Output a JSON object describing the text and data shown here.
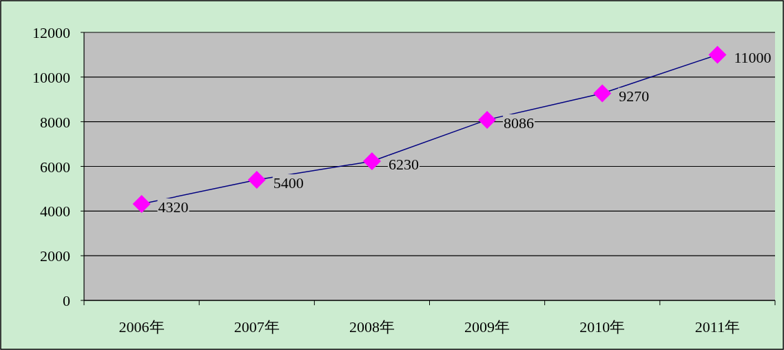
{
  "chart_data": {
    "type": "line",
    "categories": [
      "2006年",
      "2007年",
      "2008年",
      "2009年",
      "2010年",
      "2011年"
    ],
    "series": [
      {
        "color": "#000080",
        "colors": [
          "#ff00ff",
          "#ff00ff",
          "#ff00ff",
          "#ff00ff",
          "#ff00ff",
          "#ff00ff"
        ],
        "values": [
          4320,
          5400,
          6230,
          8086,
          9270,
          11000
        ]
      }
    ],
    "ylim": [
      0,
      12000
    ],
    "yticks": [
      0,
      2000,
      4000,
      6000,
      8000,
      10000,
      12000
    ],
    "grid": "y",
    "marker": "diamond",
    "line_style": "solid",
    "data_labels": true
  }
}
